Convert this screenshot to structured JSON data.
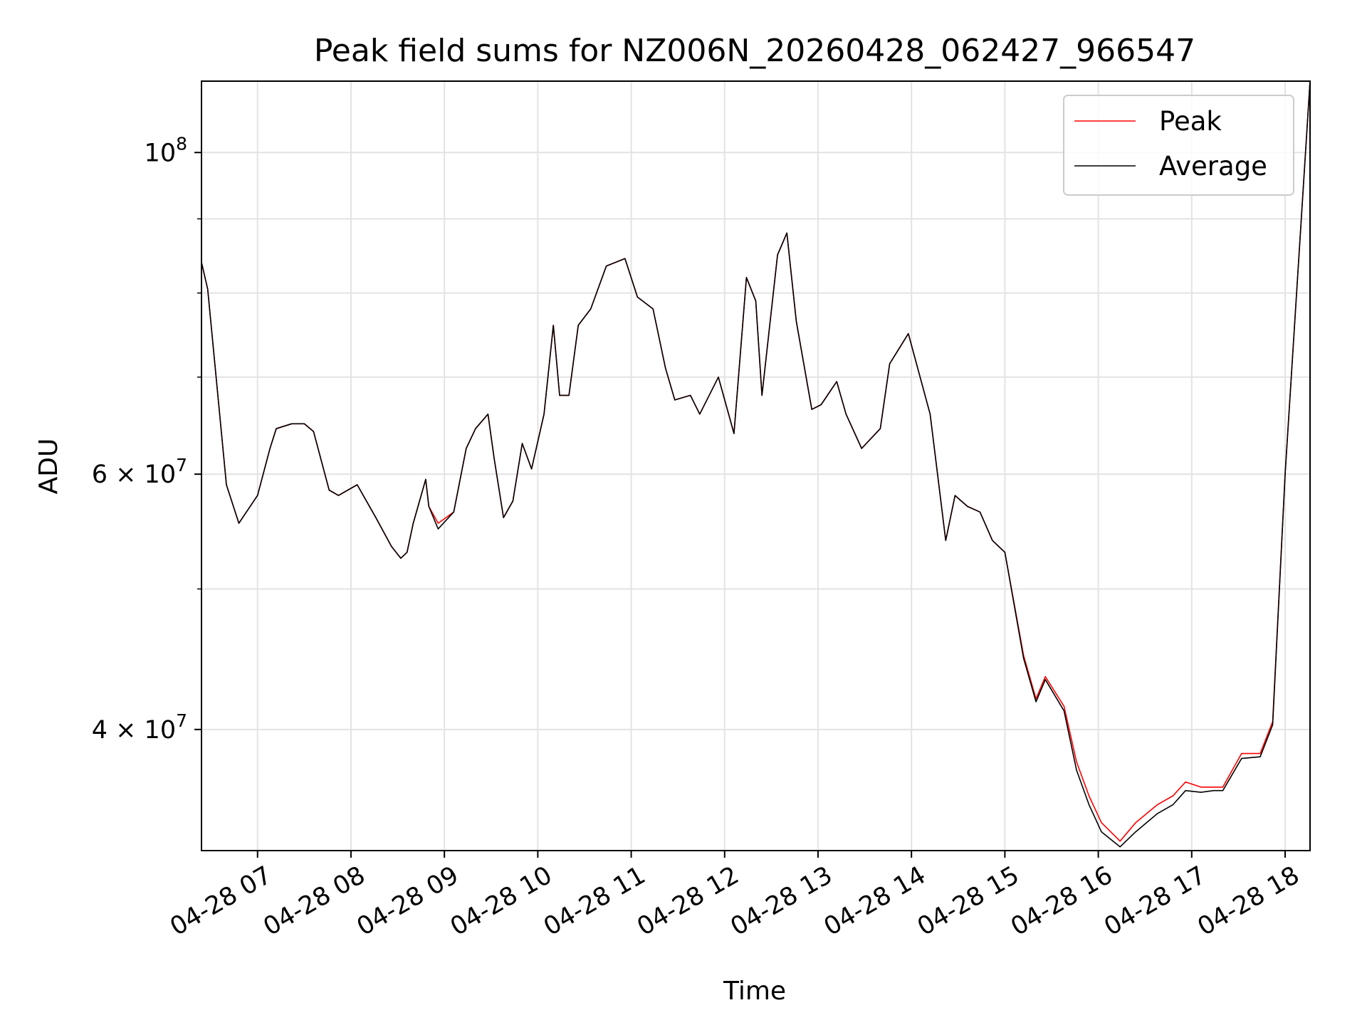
{
  "chart_data": {
    "type": "line",
    "title": "Peak field sums for NZ006N_20260428_062427_966547",
    "xlabel": "Time",
    "ylabel": "ADU",
    "y_scale": "log",
    "ylim": [
      33000000,
      112000000
    ],
    "xlim": [
      "04-28 06:24",
      "04-28 18:16"
    ],
    "grid": true,
    "legend_position": "upper right",
    "x_ticks": [
      "04-28 07",
      "04-28 08",
      "04-28 09",
      "04-28 10",
      "04-28 11",
      "04-28 12",
      "04-28 13",
      "04-28 14",
      "04-28 15",
      "04-28 16",
      "04-28 17",
      "04-28 18"
    ],
    "y_ticks_major": [
      {
        "value": 40000000,
        "label": "4 × 10",
        "exp": "7"
      },
      {
        "value": 60000000,
        "label": "6 × 10",
        "exp": "7"
      },
      {
        "value": 100000000,
        "label": "10",
        "exp": "8"
      }
    ],
    "y_ticks_minor": [
      50000000,
      70000000,
      80000000,
      90000000
    ],
    "series": [
      {
        "name": "Peak",
        "color": "#ff0000"
      },
      {
        "name": "Average",
        "color": "#000000"
      }
    ],
    "x": [
      "04-28 06:24",
      "04-28 06:28",
      "04-28 06:40",
      "04-28 06:48",
      "04-28 07:00",
      "04-28 07:08",
      "04-28 07:12",
      "04-28 07:22",
      "04-28 07:30",
      "04-28 07:36",
      "04-28 07:46",
      "04-28 07:52",
      "04-28 08:04",
      "04-28 08:16",
      "04-28 08:26",
      "04-28 08:32",
      "04-28 08:36",
      "04-28 08:40",
      "04-28 08:48",
      "04-28 08:50",
      "04-28 08:56",
      "04-28 09:06",
      "04-28 09:14",
      "04-28 09:20",
      "04-28 09:28",
      "04-28 09:32",
      "04-28 09:38",
      "04-28 09:44",
      "04-28 09:50",
      "04-28 09:56",
      "04-28 10:04",
      "04-28 10:10",
      "04-28 10:14",
      "04-28 10:20",
      "04-28 10:26",
      "04-28 10:34",
      "04-28 10:44",
      "04-28 10:56",
      "04-28 11:04",
      "04-28 11:14",
      "04-28 11:22",
      "04-28 11:28",
      "04-28 11:38",
      "04-28 11:44",
      "04-28 11:56",
      "04-28 12:06",
      "04-28 12:14",
      "04-28 12:20",
      "04-28 12:24",
      "04-28 12:34",
      "04-28 12:40",
      "04-28 12:46",
      "04-28 12:56",
      "04-28 13:02",
      "04-28 13:12",
      "04-28 13:18",
      "04-28 13:28",
      "04-28 13:40",
      "04-28 13:46",
      "04-28 13:58",
      "04-28 14:12",
      "04-28 14:22",
      "04-28 14:28",
      "04-28 14:36",
      "04-28 14:44",
      "04-28 14:52",
      "04-28 15:00",
      "04-28 15:12",
      "04-28 15:20",
      "04-28 15:26",
      "04-28 15:38",
      "04-28 15:46",
      "04-28 15:54",
      "04-28 16:02",
      "04-28 16:14",
      "04-28 16:24",
      "04-28 16:38",
      "04-28 16:48",
      "04-28 16:56",
      "04-28 17:06",
      "04-28 17:14",
      "04-28 17:20",
      "04-28 17:32",
      "04-28 17:44",
      "04-28 17:52",
      "04-28 18:00",
      "04-28 18:08",
      "04-28 18:16"
    ],
    "peak": [
      84000000,
      80500000,
      59000000,
      55500000,
      58000000,
      62500000,
      64500000,
      65000000,
      65000000,
      64200000,
      58500000,
      58000000,
      59000000,
      56000000,
      53500000,
      52500000,
      53000000,
      55500000,
      59500000,
      57000000,
      55500000,
      56500000,
      62500000,
      64500000,
      66000000,
      61500000,
      56000000,
      57500000,
      63000000,
      60500000,
      66000000,
      76000000,
      68000000,
      68000000,
      76000000,
      78000000,
      83500000,
      84500000,
      79500000,
      78000000,
      71000000,
      67500000,
      68000000,
      66000000,
      70000000,
      64000000,
      82000000,
      79000000,
      68000000,
      85000000,
      88000000,
      76500000,
      66500000,
      67000000,
      69500000,
      66000000,
      62500000,
      64500000,
      71500000,
      75000000,
      66000000,
      54000000,
      58000000,
      57000000,
      56500000,
      54000000,
      53000000,
      45000000,
      42000000,
      43500000,
      41500000,
      38000000,
      36000000,
      34500000,
      33500000,
      34500000,
      35500000,
      36000000,
      36800000,
      36500000,
      36500000,
      36500000,
      38500000,
      38500000,
      40500000,
      60000000,
      82000000,
      112000000
    ],
    "average": [
      84000000,
      80500000,
      59000000,
      55500000,
      58000000,
      62500000,
      64500000,
      65000000,
      65000000,
      64200000,
      58500000,
      58000000,
      59000000,
      56000000,
      53500000,
      52500000,
      53000000,
      55500000,
      59500000,
      57000000,
      55000000,
      56500000,
      62500000,
      64500000,
      66000000,
      61500000,
      56000000,
      57500000,
      63000000,
      60500000,
      66000000,
      76000000,
      68000000,
      68000000,
      76000000,
      78000000,
      83500000,
      84500000,
      79500000,
      78000000,
      71000000,
      67500000,
      68000000,
      66000000,
      70000000,
      64000000,
      82000000,
      79000000,
      68000000,
      85000000,
      88000000,
      76500000,
      66500000,
      67000000,
      69500000,
      66000000,
      62500000,
      64500000,
      71500000,
      75000000,
      66000000,
      54000000,
      58000000,
      57000000,
      56500000,
      54000000,
      53000000,
      44800000,
      41800000,
      43300000,
      41200000,
      37500000,
      35500000,
      34000000,
      33200000,
      34000000,
      35000000,
      35500000,
      36300000,
      36200000,
      36300000,
      36300000,
      38200000,
      38300000,
      40300000,
      60000000,
      82000000,
      112000000
    ]
  }
}
